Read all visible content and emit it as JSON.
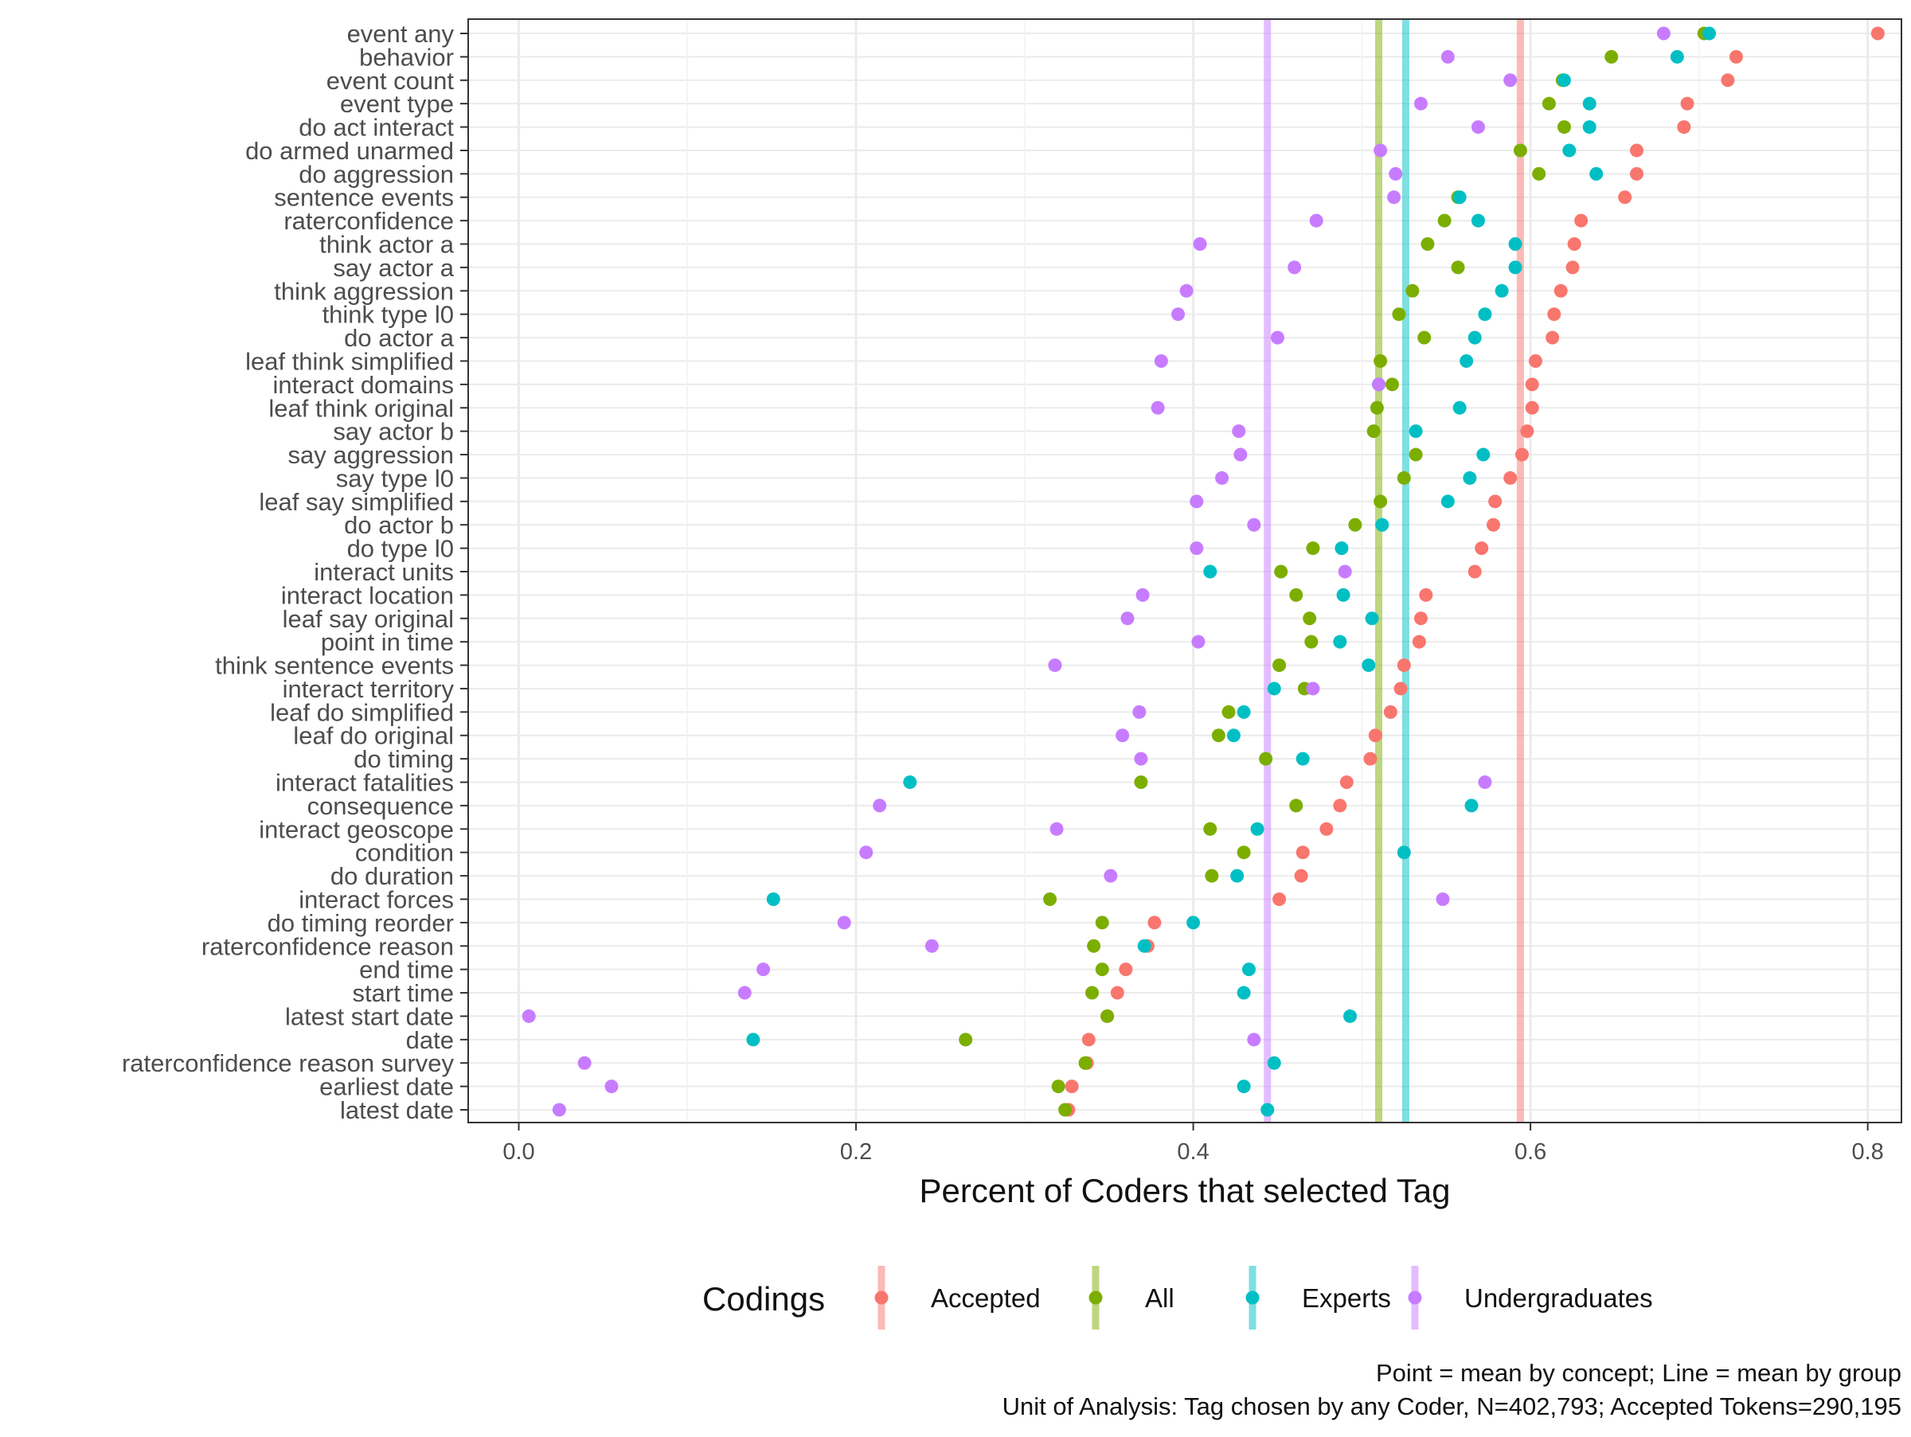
{
  "chart_data": {
    "type": "scatter",
    "title": "",
    "xlabel": "Percent of Coders that selected Tag",
    "ylabel": "",
    "xlim": [
      -0.03,
      0.82
    ],
    "x_ticks": [
      0.0,
      0.2,
      0.4,
      0.6,
      0.8
    ],
    "x_tick_labels": [
      "0.0",
      "0.2",
      "0.4",
      "0.6",
      "0.8"
    ],
    "grid": true,
    "legend": {
      "title": "Codings",
      "position": "bottom",
      "entries": [
        "Accepted",
        "All",
        "Experts",
        "Undergraduates"
      ]
    },
    "categories": [
      "event any",
      "behavior",
      "event count",
      "event type",
      "do act interact",
      "do armed unarmed",
      "do aggression",
      "sentence events",
      "raterconfidence",
      "think actor a",
      "say actor a",
      "think aggression",
      "think type l0",
      "do actor a",
      "leaf think simplified",
      "interact domains",
      "leaf think original",
      "say actor b",
      "say aggression",
      "say type l0",
      "leaf say simplified",
      "do actor b",
      "do type l0",
      "interact units",
      "interact location",
      "leaf say original",
      "point in time",
      "think sentence events",
      "interact territory",
      "leaf do simplified",
      "leaf do original",
      "do timing",
      "interact fatalities",
      "consequence",
      "interact geoscope",
      "condition",
      "do duration",
      "interact forces",
      "do timing reorder",
      "raterconfidence reason",
      "end time",
      "start time",
      "latest start date",
      "date",
      "raterconfidence reason survey",
      "earliest date",
      "latest date"
    ],
    "series": [
      {
        "name": "Accepted",
        "color": "#F8766D",
        "mean": 0.594,
        "values": [
          0.806,
          0.722,
          0.717,
          0.693,
          0.691,
          0.663,
          0.663,
          0.656,
          0.63,
          0.626,
          0.625,
          0.618,
          0.614,
          0.613,
          0.603,
          0.601,
          0.601,
          0.598,
          0.595,
          0.588,
          0.579,
          0.578,
          0.571,
          0.567,
          0.538,
          0.535,
          0.534,
          0.525,
          0.523,
          0.517,
          0.508,
          0.505,
          0.491,
          0.487,
          0.479,
          0.465,
          0.464,
          0.451,
          0.377,
          0.373,
          0.36,
          0.355,
          0.349,
          0.338,
          0.337,
          0.328,
          0.326
        ]
      },
      {
        "name": "All",
        "color": "#7CAE00",
        "mean": 0.51,
        "values": [
          0.703,
          0.648,
          0.619,
          0.611,
          0.62,
          0.594,
          0.605,
          0.557,
          0.549,
          0.539,
          0.557,
          0.53,
          0.522,
          0.537,
          0.511,
          0.518,
          0.509,
          0.507,
          0.532,
          0.525,
          0.511,
          0.496,
          0.471,
          0.452,
          0.461,
          0.469,
          0.47,
          0.451,
          0.466,
          0.421,
          0.415,
          0.443,
          0.369,
          0.461,
          0.41,
          0.43,
          0.411,
          0.315,
          0.346,
          0.341,
          0.346,
          0.34,
          0.349,
          0.265,
          0.336,
          0.32,
          0.324
        ]
      },
      {
        "name": "Experts",
        "color": "#00BFC4",
        "mean": 0.526,
        "values": [
          0.706,
          0.687,
          0.62,
          0.635,
          0.635,
          0.623,
          0.639,
          0.558,
          0.569,
          0.591,
          0.591,
          0.583,
          0.573,
          0.567,
          0.562,
          0.51,
          0.558,
          0.532,
          0.572,
          0.564,
          0.551,
          0.512,
          0.488,
          0.41,
          0.489,
          0.506,
          0.487,
          0.504,
          0.448,
          0.43,
          0.424,
          0.465,
          0.232,
          0.565,
          0.438,
          0.525,
          0.426,
          0.151,
          0.4,
          0.371,
          0.433,
          0.43,
          0.493,
          0.139,
          0.448,
          0.43,
          0.444
        ]
      },
      {
        "name": "Undergraduates",
        "color": "#C77CFF",
        "mean": 0.444,
        "values": [
          0.679,
          0.551,
          0.588,
          0.535,
          0.569,
          0.511,
          0.52,
          0.519,
          0.473,
          0.404,
          0.46,
          0.396,
          0.391,
          0.45,
          0.381,
          0.51,
          0.379,
          0.427,
          0.428,
          0.417,
          0.402,
          0.436,
          0.402,
          0.49,
          0.37,
          0.361,
          0.403,
          0.318,
          0.471,
          0.368,
          0.358,
          0.369,
          0.573,
          0.214,
          0.319,
          0.206,
          0.351,
          0.548,
          0.193,
          0.245,
          0.145,
          0.134,
          0.006,
          0.436,
          0.039,
          0.055,
          0.024
        ]
      }
    ],
    "caption": [
      "Point = mean by concept; Line = mean by group",
      "Unit of Analysis: Tag chosen by any Coder, N=402,793; Accepted Tokens=290,195"
    ]
  }
}
